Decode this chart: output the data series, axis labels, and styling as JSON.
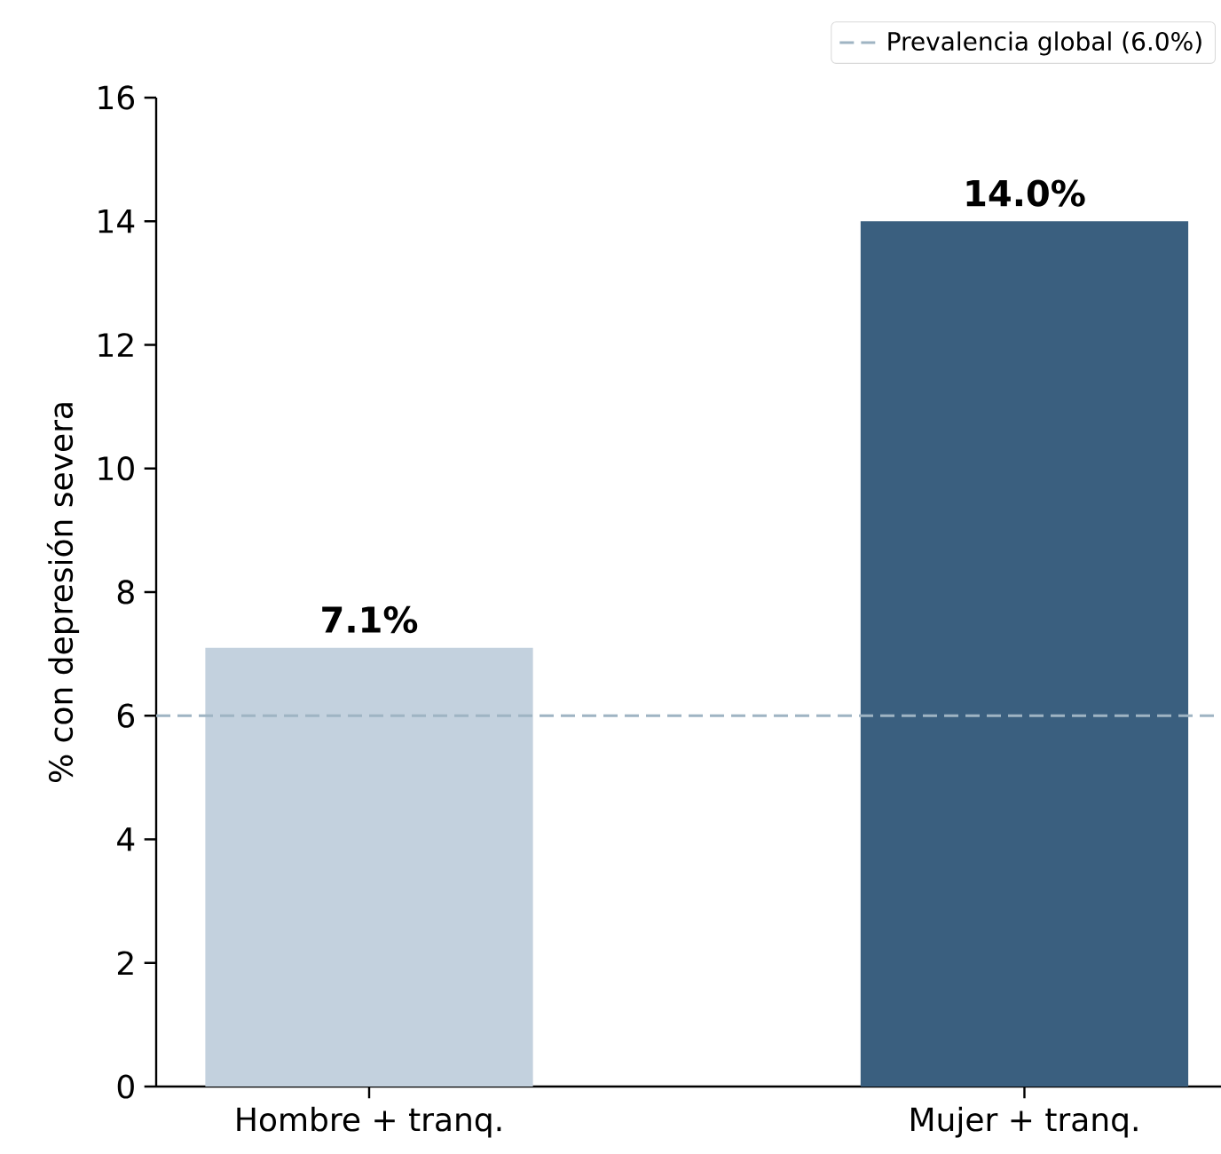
{
  "chart_data": {
    "type": "bar",
    "ylabel": "% con depresión severa",
    "categories": [
      "Hombre + tranq.",
      "Mujer + tranq."
    ],
    "values": [
      7.1,
      14.0
    ],
    "colors": [
      "#c3d1de",
      "#3a5f7f"
    ],
    "value_labels": [
      "7.1%",
      "14.0%"
    ],
    "ylim": [
      0,
      16
    ],
    "yticks": [
      0,
      2,
      4,
      6,
      8,
      10,
      12,
      14,
      16
    ],
    "ref_lines": [
      {
        "axis": "y",
        "value": 6,
        "label": "Prevalencia global (6.0%)",
        "color": "#9fb4c3",
        "line_style": "dashed"
      }
    ],
    "legend": "top right"
  }
}
